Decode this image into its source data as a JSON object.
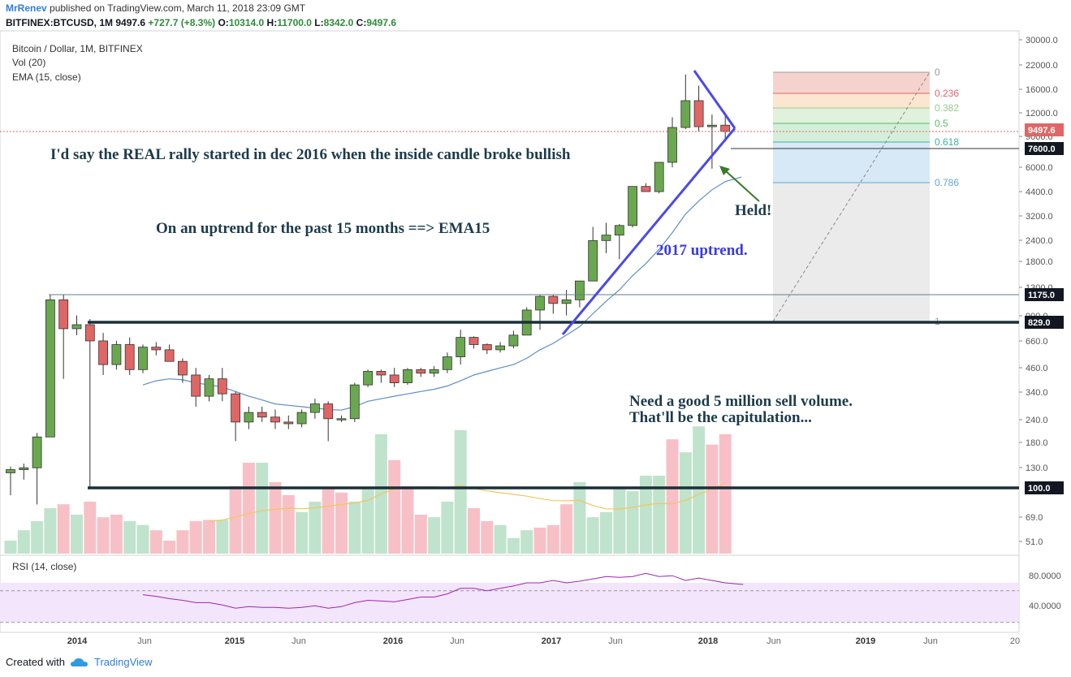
{
  "header": {
    "author": "MrRenev",
    "published": "published on TradingView.com, March 11, 2018 23:09 GMT"
  },
  "ohlc": {
    "symbol": "BITFINEX:BTCUSD, 1M",
    "last": "9497.6",
    "change": "+727.7 (+8.3%)",
    "o_label": "O:",
    "o": "10314.0",
    "h_label": "H:",
    "h": "11700.0",
    "l_label": "L:",
    "l": "8342.0",
    "c_label": "C:",
    "c": "9497.6"
  },
  "legend": {
    "title": "Bitcoin / Dollar, 1M, BITFINEX",
    "vol": "Vol (20)",
    "ema": "EMA (15, close)",
    "rsi": "RSI (14, close)"
  },
  "annotations": {
    "rally": "I'd say the REAL rally started in dec 2016 when the inside candle broke bullish",
    "ema": "On an uptrend for the past 15 months ==> EMA15",
    "uptrend": "2017 uptrend.",
    "held": "Held!",
    "volume1": "Need a good 5 million sell volume.",
    "volume2": "That'll be the capitulation..."
  },
  "footer": {
    "created": "Created with",
    "brand": "TradingView"
  },
  "colors": {
    "up": "#6aa84f",
    "down": "#e06666",
    "trend": "#4a4ae8",
    "ema": "#5b8fc9",
    "rsi": "#9c27b0",
    "vol_ma": "#f5c55a"
  },
  "chart_data": {
    "type": "candlestick",
    "scale": "log",
    "price_ticks": [
      "30000.0",
      "22000.0",
      "16000.0",
      "12000.0",
      "9000.0",
      "6000.0",
      "4400.0",
      "3200.0",
      "2400.0",
      "1800.0",
      "1300.0",
      "900.0",
      "660.0",
      "460.0",
      "340.0",
      "240.0",
      "180.0",
      "130.0",
      "69.0",
      "51.0"
    ],
    "rsi_ticks": [
      "80.0000",
      "40.0000"
    ],
    "x_ticks": [
      "2014",
      "Jun",
      "2015",
      "Jun",
      "2016",
      "Jun",
      "2017",
      "Jun",
      "2018",
      "Jun",
      "2019",
      "Jun",
      "20"
    ],
    "price_labels": [
      {
        "value": "9497.6",
        "kind": "last"
      },
      {
        "value": "7600.0",
        "kind": "level"
      },
      {
        "value": "1175.0",
        "kind": "level"
      },
      {
        "value": "829.0",
        "kind": "level"
      },
      {
        "value": "100.0",
        "kind": "level"
      }
    ],
    "fib_levels": [
      "0",
      "0.236",
      "0.382",
      "0.5",
      "0.618",
      "0.786",
      "1"
    ],
    "candles": [
      [
        120,
        130,
        90,
        125
      ],
      [
        125,
        135,
        110,
        128
      ],
      [
        128,
        200,
        80,
        190
      ],
      [
        190,
        1175,
        200,
        1100
      ],
      [
        1100,
        1175,
        400,
        760
      ],
      [
        760,
        900,
        700,
        800
      ],
      [
        800,
        860,
        100,
        650
      ],
      [
        650,
        720,
        420,
        480
      ],
      [
        480,
        650,
        450,
        620
      ],
      [
        620,
        680,
        420,
        450
      ],
      [
        450,
        620,
        430,
        600
      ],
      [
        600,
        640,
        540,
        580
      ],
      [
        580,
        620,
        520,
        500
      ],
      [
        500,
        520,
        380,
        420
      ],
      [
        420,
        460,
        280,
        320
      ],
      [
        320,
        420,
        300,
        400
      ],
      [
        400,
        460,
        300,
        330
      ],
      [
        330,
        340,
        180,
        230
      ],
      [
        230,
        280,
        210,
        260
      ],
      [
        260,
        280,
        230,
        245
      ],
      [
        245,
        270,
        210,
        230
      ],
      [
        230,
        250,
        210,
        225
      ],
      [
        225,
        270,
        215,
        260
      ],
      [
        260,
        310,
        240,
        290
      ],
      [
        290,
        300,
        180,
        240
      ],
      [
        240,
        250,
        230,
        240
      ],
      [
        240,
        380,
        230,
        370
      ],
      [
        370,
        450,
        360,
        440
      ],
      [
        440,
        450,
        380,
        420
      ],
      [
        420,
        460,
        360,
        380
      ],
      [
        380,
        460,
        370,
        450
      ],
      [
        450,
        460,
        410,
        430
      ],
      [
        430,
        470,
        410,
        450
      ],
      [
        450,
        560,
        430,
        530
      ],
      [
        530,
        750,
        480,
        680
      ],
      [
        680,
        690,
        590,
        620
      ],
      [
        620,
        630,
        550,
        580
      ],
      [
        580,
        640,
        560,
        610
      ],
      [
        610,
        740,
        590,
        700
      ],
      [
        700,
        1000,
        740,
        965
      ],
      [
        965,
        1180,
        750,
        1150
      ],
      [
        1150,
        1180,
        920,
        1050
      ],
      [
        1050,
        1250,
        900,
        1100
      ],
      [
        1100,
        1400,
        1000,
        1400
      ],
      [
        1400,
        2800,
        1400,
        2350
      ],
      [
        2350,
        2950,
        2000,
        2520
      ],
      [
        2520,
        2900,
        1850,
        2850
      ],
      [
        2850,
        4700,
        2780,
        4700
      ],
      [
        4700,
        4900,
        4400,
        4400
      ],
      [
        4400,
        6400,
        4300,
        6400
      ],
      [
        6400,
        11400,
        6000,
        10000
      ],
      [
        10000,
        19700,
        9800,
        14100
      ],
      [
        14100,
        17100,
        9500,
        10100
      ],
      [
        10100,
        11800,
        5900,
        10300
      ],
      [
        10300,
        11700,
        8342,
        9497.6
      ]
    ],
    "ema15": [
      null,
      null,
      null,
      null,
      null,
      null,
      null,
      null,
      null,
      null,
      370,
      390,
      400,
      395,
      380,
      370,
      360,
      340,
      320,
      305,
      290,
      285,
      280,
      275,
      270,
      268,
      280,
      300,
      310,
      320,
      330,
      340,
      350,
      365,
      390,
      420,
      440,
      460,
      480,
      520,
      580,
      630,
      700,
      780,
      920,
      1080,
      1250,
      1500,
      1750,
      2100,
      2600,
      3300,
      3900,
      4500,
      5000
    ],
    "volume": [
      10,
      18,
      25,
      35,
      38,
      30,
      40,
      28,
      30,
      25,
      22,
      18,
      10,
      18,
      25,
      26,
      26,
      52,
      70,
      70,
      55,
      45,
      32,
      40,
      50,
      47,
      40,
      50,
      92,
      72,
      52,
      30,
      28,
      40,
      95,
      35,
      25,
      22,
      12,
      18,
      20,
      22,
      38,
      55,
      28,
      32,
      50,
      48,
      60,
      60,
      88,
      78,
      98,
      84,
      92
    ],
    "vol_dir": [
      "u",
      "u",
      "u",
      "u",
      "d",
      "u",
      "d",
      "d",
      "d",
      "u",
      "u",
      "d",
      "d",
      "d",
      "d",
      "d",
      "u",
      "d",
      "d",
      "u",
      "d",
      "d",
      "u",
      "u",
      "d",
      "d",
      "u",
      "u",
      "u",
      "d",
      "d",
      "d",
      "u",
      "u",
      "u",
      "d",
      "d",
      "u",
      "u",
      "u",
      "d",
      "d",
      "d",
      "u",
      "u",
      "u",
      "u",
      "u",
      "u",
      "u",
      "d",
      "u",
      "u",
      "d",
      "d"
    ],
    "rsi": [
      null,
      null,
      null,
      null,
      null,
      null,
      null,
      null,
      null,
      null,
      65,
      63,
      60,
      58,
      55,
      55,
      52,
      48,
      50,
      49,
      49,
      48,
      49,
      51,
      48,
      50,
      55,
      58,
      57,
      56,
      59,
      62,
      62,
      66,
      73,
      73,
      70,
      73,
      76,
      80,
      80,
      83,
      80,
      82,
      85,
      88,
      87,
      88,
      92,
      88,
      89,
      83,
      86,
      83,
      80
    ]
  }
}
